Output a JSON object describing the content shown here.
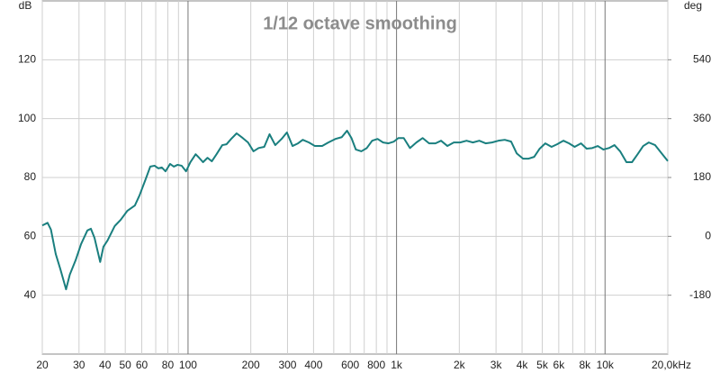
{
  "chart_data": {
    "type": "line",
    "title": "1/12 octave smoothing",
    "y_label": "dB",
    "y2_label": "deg",
    "x_log": true,
    "grid": true,
    "xlim": [
      20,
      20000
    ],
    "ylim": [
      20,
      140
    ],
    "y2lim": [
      -360,
      720
    ],
    "xticks": [
      20,
      30,
      40,
      50,
      60,
      80,
      100,
      200,
      300,
      400,
      600,
      800,
      {
        "value": 1000,
        "label": "1k"
      },
      {
        "value": 2000,
        "label": "2k"
      },
      {
        "value": 3000,
        "label": "3k"
      },
      {
        "value": 4000,
        "label": "4k"
      },
      {
        "value": 5000,
        "label": "5k"
      },
      {
        "value": 6000,
        "label": "6k"
      },
      {
        "value": 8000,
        "label": "8k"
      },
      {
        "value": 10000,
        "label": "10k"
      },
      {
        "value": 20000,
        "label": "20,0kHz"
      }
    ],
    "xminor": [
      70,
      90,
      500,
      700,
      900,
      7000,
      9000
    ],
    "yticks": [
      40,
      60,
      80,
      100,
      120
    ],
    "y2ticks": [
      -180,
      0,
      180,
      360,
      540
    ],
    "series": [
      {
        "color": "#1a7f7f",
        "x": [
          20,
          21.2,
          22,
          23.2,
          24.4,
          26,
          27.1,
          28.9,
          30.7,
          32.9,
          34.2,
          35.6,
          37.9,
          39.3,
          41.1,
          44.5,
          47.5,
          51.2,
          55.6,
          58.5,
          62.6,
          65.9,
          69.1,
          72,
          74.9,
          78,
          82,
          85.5,
          89.1,
          93.2,
          97.8,
          102.6,
          108.8,
          113,
          118,
          124,
          130,
          137,
          146,
          153,
          161,
          171,
          183,
          194,
          206,
          218,
          232,
          246,
          262,
          281,
          298,
          317,
          337,
          355,
          380,
          406,
          440,
          471,
          509,
          546,
          579,
          608,
          638,
          678,
          720,
          764,
          811,
          862,
          915,
          971,
          1020,
          1083,
          1160,
          1245,
          1335,
          1433,
          1537,
          1635,
          1754,
          1882,
          2019,
          2166,
          2324,
          2494,
          2675,
          2870,
          3080,
          3304,
          3545,
          3770,
          4045,
          4300,
          4570,
          4860,
          5170,
          5540,
          5890,
          6320,
          6720,
          7150,
          7670,
          8160,
          8680,
          9230,
          9820,
          10440,
          11100,
          11810,
          12670,
          13470,
          14330,
          15240,
          16210,
          17390,
          18690,
          20000
        ],
        "values": [
          63.7,
          64.6,
          62.3,
          54,
          48.9,
          42,
          47,
          51.9,
          57.4,
          62,
          62.6,
          59.5,
          51.3,
          56.5,
          58.6,
          63.5,
          65.6,
          68.7,
          70.5,
          73.9,
          79.4,
          83.7,
          84,
          83.1,
          83.4,
          82.1,
          84.6,
          83.7,
          84.3,
          84,
          82.1,
          85.2,
          87.9,
          86.7,
          85.2,
          86.7,
          85.5,
          87.9,
          91,
          91.3,
          93.1,
          95,
          93.4,
          91.9,
          88.9,
          90,
          90.4,
          94.7,
          91,
          93.1,
          95.3,
          90.7,
          91.6,
          92.8,
          91.9,
          90.7,
          90.7,
          91.9,
          93.1,
          93.7,
          95.9,
          93.4,
          89.5,
          88.9,
          90,
          92.5,
          93.1,
          91.9,
          91.6,
          92.2,
          93.4,
          93.4,
          90,
          91.9,
          93.4,
          91.6,
          91.6,
          92.5,
          90.7,
          91.9,
          91.9,
          92.5,
          91.9,
          92.5,
          91.6,
          91.9,
          92.5,
          92.8,
          92.2,
          88.2,
          86.4,
          86.4,
          87,
          89.8,
          91.6,
          90.4,
          91.3,
          92.5,
          91.6,
          90.4,
          91.6,
          89.8,
          90,
          90.7,
          89.5,
          90,
          91,
          88.9,
          85.2,
          85.2,
          87.9,
          90.7,
          91.9,
          91,
          88.2,
          85.6
        ]
      }
    ]
  }
}
